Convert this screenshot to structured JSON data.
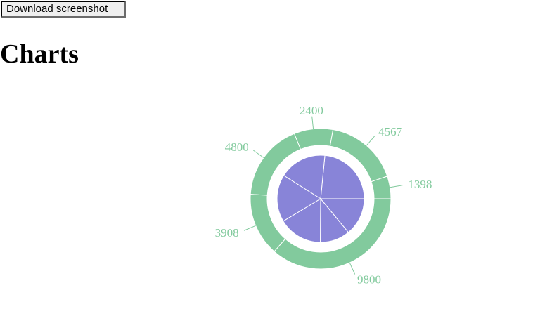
{
  "toolbar": {
    "download_label": "Download screenshot"
  },
  "page": {
    "title": "Charts"
  },
  "chart_data": {
    "type": "pie",
    "title": "",
    "outer_ring": {
      "color": "#82ca9d",
      "values": [
        1398,
        4567,
        2400,
        4800,
        3908,
        9800
      ],
      "labels": [
        "1398",
        "4567",
        "2400",
        "4800",
        "3908",
        "9800"
      ]
    },
    "inner_pie": {
      "color": "#8884d8",
      "values": [
        4000,
        3000,
        3000,
        2780,
        1890,
        2390
      ],
      "labels": []
    },
    "label_color": "#82ca9d",
    "slice_border_color": "#ffffff",
    "legend": "none"
  }
}
